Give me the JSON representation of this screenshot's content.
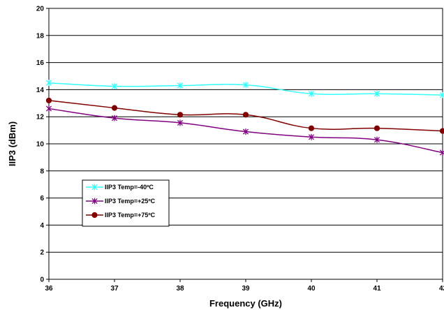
{
  "chart_data": {
    "type": "line",
    "xlabel": "Frequency (GHz)",
    "ylabel": "IIP3 (dBm)",
    "xlim": [
      36,
      42
    ],
    "ylim": [
      0,
      20
    ],
    "x_ticks": [
      "36",
      "37",
      "38",
      "39",
      "40",
      "41",
      "42"
    ],
    "y_ticks": [
      "0",
      "2",
      "4",
      "6",
      "8",
      "10",
      "12",
      "14",
      "16",
      "18",
      "20"
    ],
    "x": [
      36,
      37,
      38,
      39,
      40,
      41,
      42
    ],
    "grid": "horizontal",
    "legend_placement": "bottom-left",
    "series": [
      {
        "name": "IIP3 Temp=-40ºC",
        "color": "#33ffff",
        "marker": "x-star",
        "values": [
          14.5,
          14.25,
          14.3,
          14.35,
          13.7,
          13.7,
          13.6
        ]
      },
      {
        "name": "IIP3 Temp=+25ºC",
        "color": "#800080",
        "marker": "x-star",
        "values": [
          12.6,
          11.9,
          11.55,
          10.9,
          10.5,
          10.3,
          9.35
        ]
      },
      {
        "name": "IIP3 Temp=+75ºC",
        "color": "#800000",
        "marker": "circle",
        "values": [
          13.2,
          12.65,
          12.15,
          12.15,
          11.15,
          11.15,
          10.95
        ]
      }
    ]
  }
}
